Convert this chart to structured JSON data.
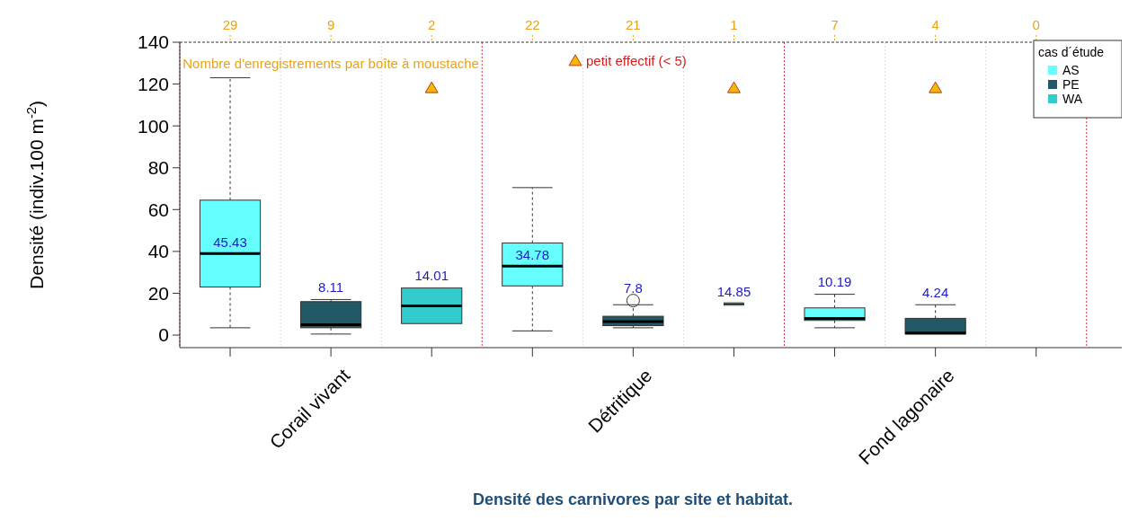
{
  "chart_data": {
    "type": "box",
    "title": "Densité des carnivores par site et habitat.",
    "ylabel": "Densité  (indiv.100 m$^{-2}$)",
    "legend_title": "cas d´étude",
    "categories": [
      null,
      "Corail vivant",
      null,
      null,
      "Détritique",
      null,
      null,
      "Fond lagonaire",
      null
    ],
    "ylim": [
      -6,
      140
    ],
    "yticks": [
      0,
      20,
      40,
      60,
      80,
      100,
      120,
      140
    ],
    "grid": "x",
    "legend": "top right",
    "annotations": [
      "29",
      "9",
      "2",
      "22",
      "21",
      "1",
      "7",
      "4",
      "0",
      "Nombre d'enregistrements par boîte à moustache"
    ],
    "series": [
      {
        "name": "AS",
        "color": "#66ffff",
        "boxes": [
          {
            "low": 3.5,
            "q1": 23,
            "median": 39,
            "q3": 64.5,
            "high": 123
          },
          null,
          null,
          {
            "low": 2,
            "q1": 23.5,
            "median": 33,
            "q3": 44,
            "high": 70.5
          },
          null,
          null,
          {
            "low": 3.5,
            "q1": 7,
            "median": 8,
            "q3": 13,
            "high": 19.5
          },
          null,
          null
        ],
        "value_labels": [
          "45.43",
          null,
          null,
          "34.78",
          null,
          null,
          "10.19",
          null,
          null
        ]
      },
      {
        "name": "PE",
        "color": "#215a66",
        "boxes": [
          null,
          {
            "low": 0.5,
            "q1": 3.5,
            "median": 5,
            "q3": 16,
            "high": 17
          },
          null,
          null,
          {
            "low": 3.5,
            "q1": 4.5,
            "median": 6.5,
            "q3": 9,
            "high": 14.5,
            "outliers": [
              16.5
            ]
          },
          null,
          null,
          {
            "low": 0.5,
            "q1": 0.5,
            "median": 1,
            "q3": 8,
            "high": 14.5
          },
          null
        ],
        "value_labels": [
          null,
          "8.11",
          null,
          null,
          "7.8",
          null,
          null,
          "4.24",
          null
        ]
      },
      {
        "name": "WA",
        "color": "#33cccc",
        "boxes": [
          null,
          null,
          {
            "low": 5.5,
            "q1": 5.5,
            "median": 14,
            "q3": 22.5,
            "high": 22.5
          },
          null,
          null,
          {
            "low": 14.85,
            "q1": 14.85,
            "median": 14.85,
            "q3": 14.85,
            "high": 14.85
          },
          null,
          null,
          null
        ],
        "value_labels": [
          null,
          null,
          "14.01",
          null,
          null,
          "14.85",
          null,
          null,
          null
        ]
      },
      {
        "name": "petit effectif (< 5)",
        "type": "scatter",
        "marker": "triangle",
        "color": "#f5b800",
        "values": [
          null,
          null,
          118,
          null,
          null,
          118,
          null,
          118,
          null
        ]
      }
    ]
  }
}
